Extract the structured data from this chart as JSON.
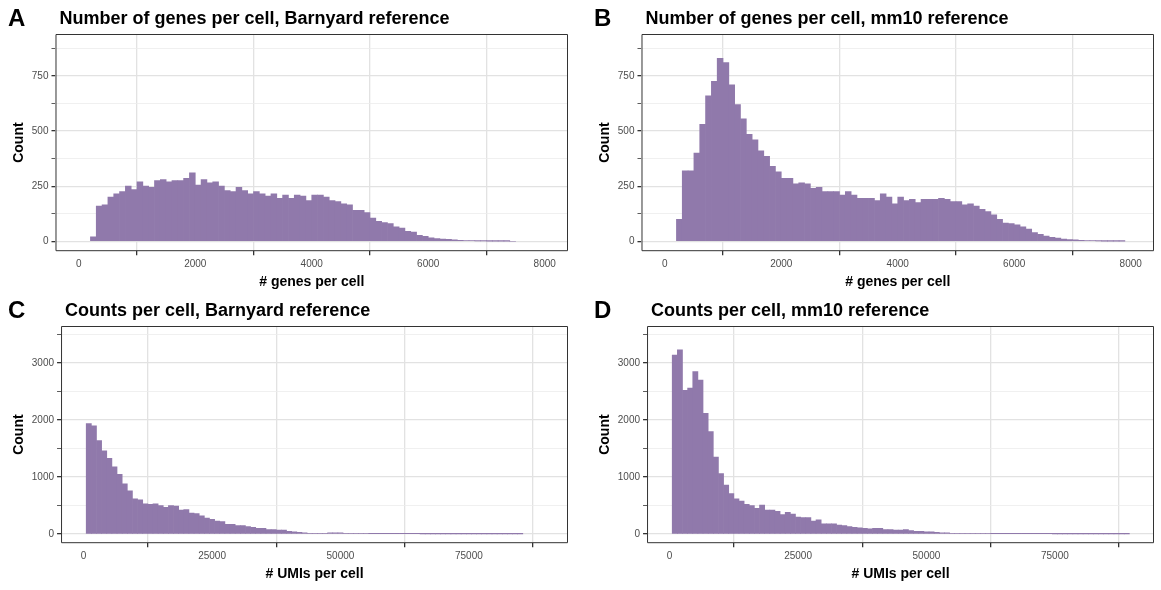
{
  "chart_data": [
    {
      "type": "histogram",
      "title": "Number of genes per cell, Barnyard reference",
      "annotations": [
        "A"
      ],
      "xlabel": "# genes per cell",
      "ylabel": "Count",
      "color": "#9079ab",
      "bins": [
        200,
        300,
        400,
        500,
        600,
        700,
        800,
        900,
        1000,
        1100,
        1200,
        1300,
        1400,
        1500,
        1600,
        1700,
        1800,
        1900,
        2000,
        2100,
        2200,
        2300,
        2400,
        2500,
        2600,
        2700,
        2800,
        2900,
        3000,
        3100,
        3200,
        3300,
        3400,
        3500,
        3600,
        3700,
        3800,
        3900,
        4000,
        4100,
        4200,
        4300,
        4400,
        4500,
        4600,
        4700,
        4800,
        4900,
        5000,
        5100,
        5200,
        5300,
        5400,
        5500,
        5600,
        5700,
        5800,
        5900,
        6000,
        6100,
        6200,
        6300,
        6400,
        6500,
        6600,
        6700,
        6800,
        6900,
        7000,
        7100,
        7200,
        7300,
        7400,
        7500
      ],
      "values": [
        20,
        160,
        165,
        200,
        215,
        225,
        250,
        235,
        270,
        250,
        245,
        275,
        280,
        270,
        275,
        275,
        285,
        310,
        255,
        280,
        265,
        270,
        250,
        230,
        225,
        245,
        230,
        215,
        225,
        215,
        205,
        215,
        195,
        210,
        195,
        210,
        205,
        185,
        210,
        210,
        200,
        185,
        180,
        170,
        165,
        140,
        140,
        130,
        105,
        90,
        85,
        80,
        65,
        60,
        45,
        42,
        27,
        22,
        16,
        12,
        10,
        9,
        6,
        4,
        3,
        3,
        2,
        2,
        1,
        1,
        1,
        1,
        0
      ],
      "xlim": [
        -400,
        8400
      ],
      "xticks": [
        0,
        2000,
        4000,
        6000,
        8000
      ],
      "ylim": [
        -45,
        940
      ],
      "yticks": [
        0,
        {
          "value": 125,
          "label": null
        },
        250,
        {
          "value": 375,
          "label": null
        },
        500,
        {
          "value": 625,
          "label": null
        },
        750,
        {
          "value": 875,
          "label": null
        }
      ],
      "grid": true,
      "legend": false
    },
    {
      "type": "histogram",
      "title": "Number of genes per cell, mm10 reference",
      "annotations": [
        "B"
      ],
      "xlabel": "# genes per cell",
      "ylabel": "Count",
      "color": "#9079ab",
      "bins": [
        200,
        300,
        400,
        500,
        600,
        700,
        800,
        900,
        1000,
        1100,
        1200,
        1300,
        1400,
        1500,
        1600,
        1700,
        1800,
        1900,
        2000,
        2100,
        2200,
        2300,
        2400,
        2500,
        2600,
        2700,
        2800,
        2900,
        3000,
        3100,
        3200,
        3300,
        3400,
        3500,
        3600,
        3700,
        3800,
        3900,
        4000,
        4100,
        4200,
        4300,
        4400,
        4500,
        4600,
        4700,
        4800,
        4900,
        5000,
        5100,
        5200,
        5300,
        5400,
        5500,
        5600,
        5700,
        5800,
        5900,
        6000,
        6100,
        6200,
        6300,
        6400,
        6500,
        6600,
        6700,
        6800,
        6900,
        7000,
        7100,
        7200,
        7300,
        7400,
        7500,
        7600,
        7700,
        7800,
        7900
      ],
      "values": [
        100,
        320,
        320,
        400,
        530,
        660,
        725,
        830,
        810,
        710,
        620,
        555,
        485,
        460,
        410,
        385,
        340,
        315,
        285,
        285,
        260,
        265,
        260,
        240,
        245,
        225,
        225,
        225,
        210,
        225,
        210,
        195,
        195,
        195,
        185,
        215,
        200,
        170,
        200,
        185,
        190,
        175,
        190,
        190,
        190,
        195,
        190,
        180,
        180,
        165,
        170,
        160,
        145,
        135,
        120,
        100,
        82,
        80,
        75,
        65,
        55,
        40,
        32,
        24,
        18,
        14,
        10,
        8,
        6,
        4,
        3,
        3,
        2,
        1,
        1,
        1,
        1
      ],
      "xlim": [
        -400,
        8400
      ],
      "xticks": [
        0,
        2000,
        4000,
        6000,
        8000
      ],
      "ylim": [
        -45,
        940
      ],
      "yticks": [
        0,
        {
          "value": 125,
          "label": null
        },
        250,
        {
          "value": 375,
          "label": null
        },
        500,
        {
          "value": 625,
          "label": null
        },
        750,
        {
          "value": 875,
          "label": null
        }
      ],
      "grid": true,
      "legend": false
    },
    {
      "type": "histogram",
      "title": "Counts per cell, Barnyard reference",
      "annotations": [
        "C"
      ],
      "xlabel": "# UMIs per cell",
      "ylabel": "Count",
      "color": "#9079ab",
      "bins": [
        500,
        1500,
        2500,
        3500,
        4500,
        5500,
        6500,
        7500,
        8500,
        9500,
        10500,
        11500,
        12500,
        13500,
        14500,
        15500,
        16500,
        17500,
        18500,
        19500,
        20500,
        21500,
        22500,
        23500,
        24500,
        25500,
        26500,
        27500,
        28500,
        29500,
        30500,
        31500,
        32500,
        33500,
        34500,
        35500,
        36500,
        37500,
        38500,
        39500,
        40500,
        41500,
        42500,
        43500,
        44500,
        45500,
        46500,
        47500,
        48500,
        49500,
        50500,
        51500,
        52500,
        53500,
        54500,
        55500,
        56500,
        57500,
        58500,
        59500,
        60500,
        61500,
        62500,
        63500,
        64500,
        65500,
        66500,
        67500,
        68500,
        69500,
        70500,
        71500,
        72500,
        73500,
        74500,
        75500,
        76500,
        77500,
        78500,
        79500,
        80500,
        81500,
        82500,
        83500,
        84500,
        85500
      ],
      "values": [
        1940,
        1900,
        1640,
        1460,
        1330,
        1180,
        1050,
        880,
        760,
        620,
        600,
        530,
        520,
        530,
        500,
        470,
        500,
        490,
        420,
        430,
        370,
        360,
        320,
        280,
        260,
        230,
        220,
        170,
        170,
        150,
        150,
        130,
        120,
        100,
        100,
        80,
        80,
        70,
        70,
        50,
        40,
        30,
        20,
        10,
        10,
        10,
        10,
        20,
        20,
        20,
        10,
        10,
        10,
        10,
        10,
        5,
        5,
        5,
        5,
        5,
        5,
        5,
        5,
        5,
        5,
        2,
        2,
        2,
        2,
        2,
        2,
        2,
        2,
        2,
        2,
        2,
        2,
        2,
        2,
        2,
        2,
        2,
        2,
        2,
        2
      ],
      "xlim": [
        -4400,
        94300
      ],
      "xticks": [
        0,
        25000,
        50000,
        75000
      ],
      "ylim": [
        -160,
        3650
      ],
      "yticks": [
        0,
        {
          "value": 500,
          "label": null
        },
        1000,
        {
          "value": 1500,
          "label": null
        },
        2000,
        {
          "value": 2500,
          "label": null
        },
        3000,
        {
          "value": 3500,
          "label": null
        }
      ],
      "grid": true,
      "legend": false
    },
    {
      "type": "histogram",
      "title": "Counts per cell, mm10 reference",
      "annotations": [
        "D"
      ],
      "xlabel": "# UMIs per cell",
      "ylabel": "Count",
      "color": "#9079ab",
      "bins": [
        500,
        1500,
        2500,
        3500,
        4500,
        5500,
        6500,
        7500,
        8500,
        9500,
        10500,
        11500,
        12500,
        13500,
        14500,
        15500,
        16500,
        17500,
        18500,
        19500,
        20500,
        21500,
        22500,
        23500,
        24500,
        25500,
        26500,
        27500,
        28500,
        29500,
        30500,
        31500,
        32500,
        33500,
        34500,
        35500,
        36500,
        37500,
        38500,
        39500,
        40500,
        41500,
        42500,
        43500,
        44500,
        45500,
        46500,
        47500,
        48500,
        49500,
        50500,
        51500,
        52500,
        53500,
        54500,
        55500,
        56500,
        57500,
        58500,
        59500,
        60500,
        61500,
        62500,
        63500,
        64500,
        65500,
        66500,
        67500,
        68500,
        69500,
        70500,
        71500,
        72500,
        73500,
        74500,
        75500,
        76500,
        77500,
        78500,
        79500,
        80500,
        81500,
        82500,
        83500,
        84500,
        85500,
        86500,
        87500,
        88500,
        89500
      ],
      "values": [
        3140,
        3230,
        2520,
        2560,
        2850,
        2700,
        2120,
        1800,
        1350,
        1060,
        860,
        710,
        620,
        580,
        520,
        500,
        450,
        510,
        420,
        420,
        400,
        340,
        380,
        350,
        300,
        290,
        290,
        230,
        250,
        180,
        180,
        180,
        160,
        150,
        130,
        120,
        110,
        100,
        90,
        100,
        100,
        80,
        80,
        70,
        70,
        80,
        60,
        50,
        50,
        40,
        40,
        30,
        20,
        20,
        10,
        10,
        10,
        10,
        10,
        10,
        10,
        10,
        5,
        5,
        5,
        5,
        5,
        5,
        5,
        5,
        5,
        5,
        5,
        5,
        2,
        2,
        2,
        2,
        2,
        2,
        2,
        2,
        2,
        2,
        2,
        2,
        2,
        2,
        2
      ],
      "xlim": [
        -4400,
        94300
      ],
      "xticks": [
        0,
        25000,
        50000,
        75000
      ],
      "ylim": [
        -160,
        3650
      ],
      "yticks": [
        0,
        {
          "value": 500,
          "label": null
        },
        1000,
        {
          "value": 1500,
          "label": null
        },
        2000,
        {
          "value": 2500,
          "label": null
        },
        3000,
        {
          "value": 3500,
          "label": null
        }
      ],
      "grid": true,
      "legend": false
    }
  ]
}
